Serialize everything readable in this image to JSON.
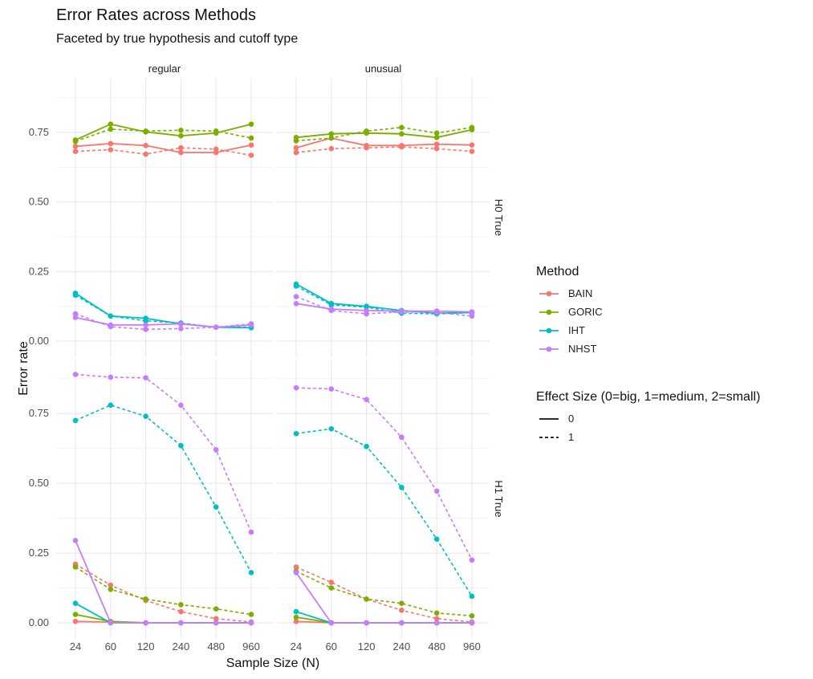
{
  "header": {
    "title": "Error Rates across Methods",
    "subtitle": "Faceted by true hypothesis and cutoff type"
  },
  "legend": {
    "method_title": "Method",
    "methods": [
      {
        "label": "BAIN",
        "color": "#F8766D"
      },
      {
        "label": "GORIC",
        "color": "#7CAE00"
      },
      {
        "label": "IHT",
        "color": "#00BFC4"
      },
      {
        "label": "NHST",
        "color": "#C77CFF"
      }
    ],
    "effect_title": "Effect Size (0=big, 1=medium, 2=small)",
    "effects": [
      {
        "label": "0",
        "linetype": "solid"
      },
      {
        "label": "1",
        "linetype": "dashed"
      }
    ]
  },
  "chart_data": {
    "type": "line",
    "title": "Error Rates across Methods",
    "subtitle": "Faceted by true hypothesis and cutoff type",
    "xlabel": "Sample Size (N)",
    "ylabel": "Error rate",
    "x": [
      "24",
      "60",
      "120",
      "240",
      "480",
      "960"
    ],
    "ylim": [
      0,
      0.88
    ],
    "yticks": [
      "0.00",
      "0.25",
      "0.50",
      "0.75"
    ],
    "grid": true,
    "legend_position": "right",
    "facet_columns": [
      "regular",
      "unusual"
    ],
    "facet_rows": [
      "H0 True",
      "H1 True"
    ],
    "panels": [
      {
        "column": "regular",
        "row": "H0 True",
        "series": [
          {
            "method": "BAIN",
            "effect": "0",
            "values": [
              0.7,
              0.71,
              0.703,
              0.678,
              0.678,
              0.705
            ]
          },
          {
            "method": "BAIN",
            "effect": "1",
            "values": [
              0.682,
              0.688,
              0.672,
              0.695,
              0.69,
              0.668
            ]
          },
          {
            "method": "GORIC",
            "effect": "0",
            "values": [
              0.723,
              0.78,
              0.752,
              0.738,
              0.748,
              0.78
            ]
          },
          {
            "method": "GORIC",
            "effect": "1",
            "values": [
              0.718,
              0.762,
              0.755,
              0.758,
              0.755,
              0.73
            ]
          },
          {
            "method": "IHT",
            "effect": "0",
            "values": [
              0.172,
              0.09,
              0.082,
              0.062,
              0.05,
              0.048
            ]
          },
          {
            "method": "IHT",
            "effect": "1",
            "values": [
              0.165,
              0.09,
              0.073,
              0.065,
              0.05,
              0.05
            ]
          },
          {
            "method": "NHST",
            "effect": "0",
            "values": [
              0.085,
              0.058,
              0.058,
              0.062,
              0.05,
              0.058
            ]
          },
          {
            "method": "NHST",
            "effect": "1",
            "values": [
              0.098,
              0.052,
              0.042,
              0.045,
              0.05,
              0.062
            ]
          }
        ]
      },
      {
        "column": "unusual",
        "row": "H0 True",
        "series": [
          {
            "method": "BAIN",
            "effect": "0",
            "values": [
              0.695,
              0.73,
              0.703,
              0.703,
              0.708,
              0.705
            ]
          },
          {
            "method": "BAIN",
            "effect": "1",
            "values": [
              0.678,
              0.692,
              0.695,
              0.698,
              0.692,
              0.682
            ]
          },
          {
            "method": "GORIC",
            "effect": "0",
            "values": [
              0.732,
              0.745,
              0.748,
              0.745,
              0.732,
              0.76
            ]
          },
          {
            "method": "GORIC",
            "effect": "1",
            "values": [
              0.72,
              0.73,
              0.755,
              0.768,
              0.748,
              0.768
            ]
          },
          {
            "method": "IHT",
            "effect": "0",
            "values": [
              0.205,
              0.135,
              0.125,
              0.11,
              0.1,
              0.103
            ]
          },
          {
            "method": "IHT",
            "effect": "1",
            "values": [
              0.198,
              0.13,
              0.122,
              0.1,
              0.098,
              0.102
            ]
          },
          {
            "method": "NHST",
            "effect": "0",
            "values": [
              0.135,
              0.115,
              0.11,
              0.108,
              0.108,
              0.105
            ]
          },
          {
            "method": "NHST",
            "effect": "1",
            "values": [
              0.16,
              0.11,
              0.098,
              0.105,
              0.103,
              0.09
            ]
          }
        ]
      },
      {
        "column": "regular",
        "row": "H1 True",
        "series": [
          {
            "method": "BAIN",
            "effect": "0",
            "values": [
              0.005,
              0.003,
              0.0,
              0.0,
              0.0,
              0.0
            ]
          },
          {
            "method": "BAIN",
            "effect": "1",
            "values": [
              0.21,
              0.135,
              0.08,
              0.04,
              0.015,
              0.003
            ]
          },
          {
            "method": "GORIC",
            "effect": "0",
            "values": [
              0.03,
              0.005,
              0.0,
              0.0,
              0.0,
              0.0
            ]
          },
          {
            "method": "GORIC",
            "effect": "1",
            "values": [
              0.2,
              0.12,
              0.085,
              0.065,
              0.05,
              0.03
            ]
          },
          {
            "method": "IHT",
            "effect": "0",
            "values": [
              0.07,
              0.0,
              0.0,
              0.0,
              0.0,
              0.0
            ]
          },
          {
            "method": "IHT",
            "effect": "1",
            "values": [
              0.725,
              0.78,
              0.74,
              0.635,
              0.415,
              0.18
            ]
          },
          {
            "method": "NHST",
            "effect": "0",
            "values": [
              0.295,
              0.0,
              0.0,
              0.0,
              0.0,
              0.0
            ]
          },
          {
            "method": "NHST",
            "effect": "1",
            "values": [
              0.89,
              0.88,
              0.878,
              0.78,
              0.62,
              0.325
            ]
          }
        ]
      },
      {
        "column": "unusual",
        "row": "H1 True",
        "series": [
          {
            "method": "BAIN",
            "effect": "0",
            "values": [
              0.005,
              0.0,
              0.0,
              0.0,
              0.0,
              0.0
            ]
          },
          {
            "method": "BAIN",
            "effect": "1",
            "values": [
              0.2,
              0.145,
              0.085,
              0.045,
              0.015,
              0.003
            ]
          },
          {
            "method": "GORIC",
            "effect": "0",
            "values": [
              0.02,
              0.0,
              0.0,
              0.0,
              0.0,
              0.0
            ]
          },
          {
            "method": "GORIC",
            "effect": "1",
            "values": [
              0.185,
              0.125,
              0.085,
              0.07,
              0.035,
              0.025
            ]
          },
          {
            "method": "IHT",
            "effect": "0",
            "values": [
              0.04,
              0.0,
              0.0,
              0.0,
              0.0,
              0.0
            ]
          },
          {
            "method": "IHT",
            "effect": "1",
            "values": [
              0.678,
              0.695,
              0.632,
              0.485,
              0.3,
              0.095
            ]
          },
          {
            "method": "NHST",
            "effect": "0",
            "values": [
              0.18,
              0.0,
              0.0,
              0.0,
              0.0,
              0.0
            ]
          },
          {
            "method": "NHST",
            "effect": "1",
            "values": [
              0.842,
              0.838,
              0.8,
              0.665,
              0.472,
              0.225
            ]
          }
        ]
      }
    ]
  }
}
